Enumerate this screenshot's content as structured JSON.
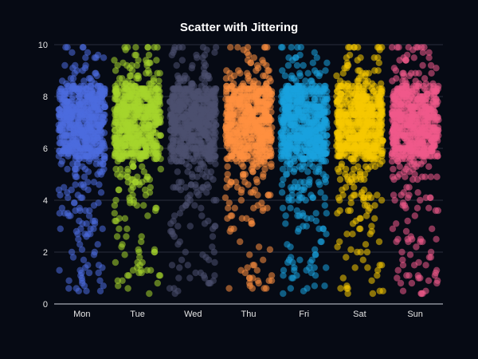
{
  "chart_data": {
    "type": "scatter",
    "title": "Scatter with Jittering",
    "xlabel": "",
    "ylabel": "",
    "categories": [
      "Mon",
      "Tue",
      "Wed",
      "Thu",
      "Fri",
      "Sat",
      "Sun"
    ],
    "ylim": [
      0,
      10
    ],
    "yticks": [
      "0",
      "2",
      "4",
      "6",
      "8",
      "10"
    ],
    "grid": "horizontal",
    "legend": "none",
    "distribution": {
      "points_per_category": 700,
      "core_range": [
        5.6,
        8.4
      ],
      "spread_range": [
        0.4,
        9.9
      ],
      "note_values_clipped_to": [
        0.4,
        9.9
      ]
    },
    "series": [
      {
        "category": "Mon",
        "color": "#4d6bdf"
      },
      {
        "category": "Tue",
        "color": "#a6d62b"
      },
      {
        "category": "Wed",
        "color": "#4d5070"
      },
      {
        "category": "Thu",
        "color": "#ff8f3f"
      },
      {
        "category": "Fri",
        "color": "#1aa3de"
      },
      {
        "category": "Sat",
        "color": "#f5c800"
      },
      {
        "category": "Sun",
        "color": "#f05a8a"
      }
    ]
  }
}
